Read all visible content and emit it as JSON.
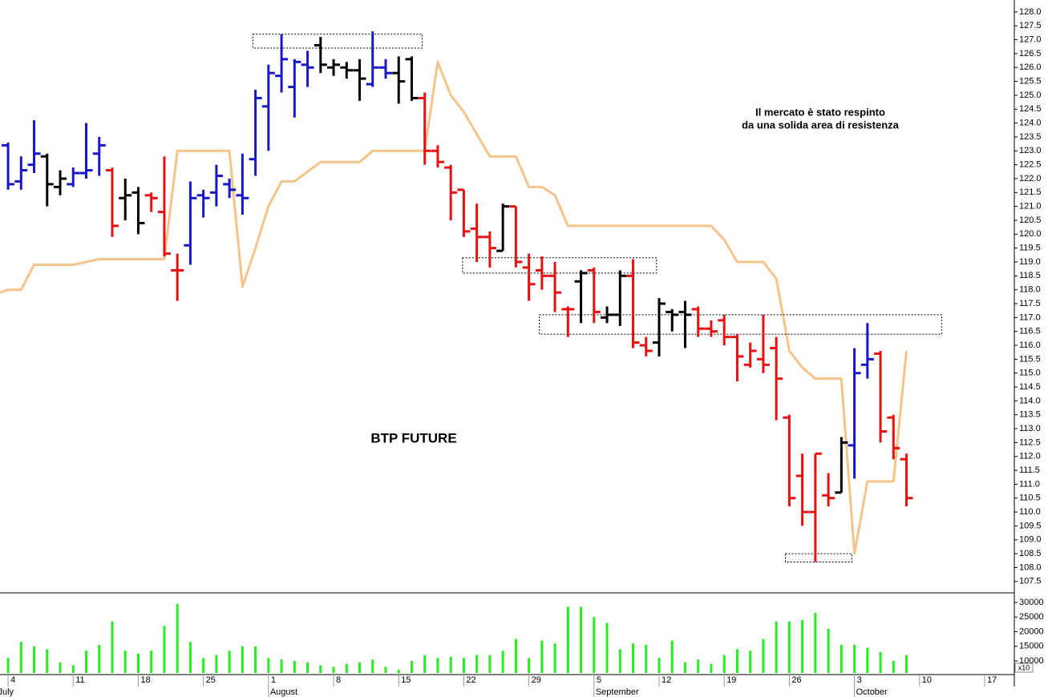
{
  "chart_data": [
    {
      "type": "ohlc",
      "title": "BTP FUTURE",
      "annotation": [
        "Il mercato è stato respinto",
        "da una solida area di resistenza"
      ],
      "x": [
        0,
        1,
        2,
        3,
        4,
        5,
        6,
        7,
        8,
        9,
        10,
        11,
        12,
        13,
        14,
        15,
        16,
        17,
        18,
        19,
        20,
        21,
        22,
        23,
        24,
        25,
        26,
        27,
        28,
        29,
        30,
        31,
        32,
        33,
        34,
        35,
        36,
        37,
        38,
        39,
        40,
        41,
        42,
        43,
        44,
        45,
        46,
        47,
        48,
        49,
        50,
        51,
        52,
        53,
        54,
        55,
        56,
        57,
        58,
        59,
        60,
        61,
        62,
        63,
        64,
        65,
        66,
        67,
        68,
        69
      ],
      "open": [
        123.2,
        121.9,
        122.5,
        122.8,
        121.7,
        121.8,
        122.2,
        122.9,
        122.3,
        121.3,
        121.5,
        121.4,
        120.8,
        118.7,
        119.6,
        121.4,
        121.5,
        121.8,
        121.4,
        122.7,
        124.6,
        125.7,
        125.3,
        126.1,
        126.8,
        126.0,
        126.0,
        125.9,
        125.4,
        126.0,
        125.8,
        126.3,
        124.9,
        123.0,
        122.4,
        121.6,
        120.2,
        119.9,
        119.4,
        121.0,
        118.8,
        118.7,
        118.5,
        117.3,
        118.3,
        118.7,
        117.0,
        117.1,
        118.5,
        116.0,
        116.1,
        117.2,
        117.2,
        117.3,
        116.6,
        116.9,
        116.3,
        115.3,
        115.5,
        115.9,
        113.4,
        111.3,
        110.0,
        110.6,
        110.7,
        112.4,
        115.3,
        115.7,
        113.4,
        111.9
      ],
      "high": [
        123.3,
        122.8,
        124.1,
        122.9,
        122.3,
        122.4,
        124.0,
        123.5,
        122.4,
        122.0,
        121.7,
        121.5,
        122.8,
        119.3,
        121.9,
        121.6,
        122.5,
        122.0,
        122.9,
        125.2,
        126.1,
        127.2,
        126.3,
        126.6,
        127.1,
        126.3,
        126.2,
        126.3,
        127.3,
        126.3,
        126.4,
        126.4,
        125.1,
        123.2,
        122.5,
        121.6,
        121.1,
        120.1,
        121.1,
        121.0,
        119.3,
        119.2,
        119.0,
        117.4,
        118.7,
        118.8,
        117.4,
        118.7,
        119.1,
        116.3,
        117.7,
        117.3,
        117.6,
        117.4,
        116.9,
        117.1,
        116.4,
        116.1,
        117.1,
        116.3,
        113.5,
        112.1,
        112.1,
        111.4,
        112.7,
        115.9,
        116.8,
        115.8,
        113.5,
        112.1
      ],
      "low": [
        121.6,
        121.6,
        122.2,
        121.0,
        121.4,
        121.7,
        122.0,
        122.1,
        119.9,
        120.5,
        120.0,
        120.8,
        119.2,
        117.6,
        118.9,
        120.6,
        121.0,
        121.3,
        120.7,
        122.1,
        123.0,
        125.1,
        124.2,
        125.3,
        125.8,
        125.7,
        125.6,
        124.8,
        125.3,
        125.6,
        124.7,
        124.8,
        122.5,
        122.4,
        120.5,
        119.9,
        119.0,
        118.8,
        119.4,
        118.8,
        117.6,
        118.0,
        117.2,
        116.3,
        116.8,
        116.8,
        116.8,
        116.7,
        115.9,
        115.6,
        115.6,
        116.5,
        115.9,
        116.3,
        116.3,
        116.0,
        114.7,
        115.2,
        115.0,
        113.3,
        110.2,
        109.5,
        108.2,
        110.2,
        110.7,
        111.2,
        114.8,
        112.5,
        111.9,
        110.2
      ],
      "close": [
        121.8,
        122.3,
        122.9,
        121.8,
        122.0,
        122.2,
        122.3,
        123.2,
        120.3,
        121.4,
        120.4,
        121.3,
        119.3,
        118.7,
        121.3,
        121.3,
        122.1,
        121.6,
        121.3,
        124.9,
        125.8,
        126.3,
        126.2,
        126.0,
        126.1,
        126.1,
        125.9,
        125.6,
        126.0,
        125.8,
        125.5,
        124.9,
        123.0,
        122.6,
        121.5,
        120.1,
        119.9,
        119.5,
        121.0,
        119.0,
        118.2,
        118.5,
        117.9,
        117.3,
        118.6,
        117.2,
        117.1,
        118.5,
        116.1,
        115.8,
        117.5,
        117.1,
        117.1,
        116.6,
        116.5,
        116.3,
        115.6,
        115.8,
        115.3,
        114.8,
        110.5,
        110.0,
        112.1,
        110.5,
        112.5,
        115.0,
        115.5,
        112.9,
        112.3,
        110.5
      ],
      "colors": [
        "#1818c8",
        "#1818c8",
        "#1818c8",
        "#000000",
        "#000000",
        "#1818c8",
        "#1818c8",
        "#1818c8",
        "#e81010",
        "#000000",
        "#000000",
        "#e81010",
        "#e81010",
        "#e81010",
        "#1818c8",
        "#1818c8",
        "#1818c8",
        "#1818c8",
        "#1818c8",
        "#1818c8",
        "#1818c8",
        "#1818c8",
        "#1818c8",
        "#1818c8",
        "#000000",
        "#000000",
        "#000000",
        "#000000",
        "#1818c8",
        "#1818c8",
        "#000000",
        "#000000",
        "#e81010",
        "#e81010",
        "#e81010",
        "#e81010",
        "#e81010",
        "#e81010",
        "#000000",
        "#e81010",
        "#e81010",
        "#e81010",
        "#e81010",
        "#e81010",
        "#000000",
        "#e81010",
        "#000000",
        "#000000",
        "#e81010",
        "#e81010",
        "#000000",
        "#000000",
        "#000000",
        "#e81010",
        "#e81010",
        "#e81010",
        "#e81010",
        "#e81010",
        "#e81010",
        "#e81010",
        "#e81010",
        "#e81010",
        "#e81010",
        "#e81010",
        "#000000",
        "#1818c8",
        "#1818c8",
        "#e81010",
        "#e81010",
        "#e81010"
      ],
      "line": {
        "color": "#f5c48a",
        "x": [
          -0.6,
          0,
          1,
          2,
          5,
          7,
          12,
          13,
          17,
          18,
          19,
          20,
          21,
          22,
          24,
          27,
          28,
          32,
          33,
          34,
          35,
          37,
          39,
          40,
          41,
          42,
          43,
          54,
          55,
          56,
          58,
          59,
          60,
          61,
          62,
          64,
          65,
          66,
          68,
          69
        ],
        "values": [
          117.9,
          118.0,
          118.0,
          118.9,
          118.9,
          119.1,
          119.1,
          123.0,
          123.0,
          118.1,
          119.5,
          121.0,
          121.9,
          121.9,
          122.6,
          122.6,
          123.0,
          123.0,
          126.2,
          125.0,
          124.4,
          122.8,
          122.8,
          121.7,
          121.7,
          121.4,
          120.3,
          120.3,
          119.8,
          119.0,
          119.0,
          118.4,
          115.8,
          115.2,
          114.8,
          114.8,
          108.5,
          111.1,
          111.1,
          115.8
        ]
      },
      "zones": [
        {
          "x": [
            18.8,
            31.8
          ],
          "y": [
            126.7,
            127.2
          ]
        },
        {
          "x": [
            34.9,
            49.8
          ],
          "y": [
            118.6,
            119.15
          ]
        },
        {
          "x": [
            40.8,
            71.7
          ],
          "y": [
            116.4,
            117.1
          ]
        },
        {
          "x": [
            59.7,
            64.8
          ],
          "y": [
            108.2,
            108.5
          ]
        }
      ],
      "xlim": [
        -0.62,
        77.28
      ],
      "ylim": [
        107.09,
        128.43
      ],
      "yticks": [
        {
          "value": 107.5,
          "label": "107.5"
        },
        {
          "value": 108,
          "label": "108.0"
        },
        {
          "value": 108.5,
          "label": "108.5"
        },
        {
          "value": 109,
          "label": "109.0"
        },
        {
          "value": 109.5,
          "label": "109.5"
        },
        {
          "value": 110,
          "label": "110.0"
        },
        {
          "value": 110.5,
          "label": "110.5"
        },
        {
          "value": 111,
          "label": "111.0"
        },
        {
          "value": 111.5,
          "label": "111.5"
        },
        {
          "value": 112,
          "label": "112.0"
        },
        {
          "value": 112.5,
          "label": "112.5"
        },
        {
          "value": 113,
          "label": "113.0"
        },
        {
          "value": 113.5,
          "label": "113.5"
        },
        {
          "value": 114,
          "label": "114.0"
        },
        {
          "value": 114.5,
          "label": "114.5"
        },
        {
          "value": 115,
          "label": "115.0"
        },
        {
          "value": 115.5,
          "label": "115.5"
        },
        {
          "value": 116,
          "label": "116.0"
        },
        {
          "value": 116.5,
          "label": "116.5"
        },
        {
          "value": 117,
          "label": "117.0"
        },
        {
          "value": 117.5,
          "label": "117.5"
        },
        {
          "value": 118,
          "label": "118.0"
        },
        {
          "value": 118.5,
          "label": "118.5"
        },
        {
          "value": 119,
          "label": "119.0"
        },
        {
          "value": 119.5,
          "label": "119.5"
        },
        {
          "value": 120,
          "label": "120.0"
        },
        {
          "value": 120.5,
          "label": "120.5"
        },
        {
          "value": 121,
          "label": "121.0"
        },
        {
          "value": 121.5,
          "label": "121.5"
        },
        {
          "value": 122,
          "label": "122.0"
        },
        {
          "value": 122.5,
          "label": "122.5"
        },
        {
          "value": 123,
          "label": "123.0"
        },
        {
          "value": 123.5,
          "label": "123.5"
        },
        {
          "value": 124,
          "label": "124.0"
        },
        {
          "value": 124.5,
          "label": "124.5"
        },
        {
          "value": 125,
          "label": "125.0"
        },
        {
          "value": 125.5,
          "label": "125.5"
        },
        {
          "value": 126,
          "label": "126.0"
        },
        {
          "value": 126.5,
          "label": "126.5"
        },
        {
          "value": 127,
          "label": "127.0"
        },
        {
          "value": 127.5,
          "label": "127.5"
        },
        {
          "value": 128,
          "label": "128.0"
        }
      ],
      "xticks": [
        {
          "value": 0,
          "label": "4"
        },
        {
          "value": 5,
          "label": "11"
        },
        {
          "value": 10,
          "label": "18"
        },
        {
          "value": 15,
          "label": "25"
        },
        {
          "value": 20,
          "label": "1"
        },
        {
          "value": 25,
          "label": "8"
        },
        {
          "value": 30,
          "label": "15"
        },
        {
          "value": 35,
          "label": "22"
        },
        {
          "value": 40,
          "label": "29"
        },
        {
          "value": 45,
          "label": "5"
        },
        {
          "value": 50,
          "label": "12"
        },
        {
          "value": 55,
          "label": "19"
        },
        {
          "value": 60,
          "label": "26"
        },
        {
          "value": 65,
          "label": "3"
        },
        {
          "value": 70,
          "label": "10"
        },
        {
          "value": 75,
          "label": "17"
        }
      ],
      "month_labels": [
        {
          "value": -0.9,
          "label": "July"
        },
        {
          "value": 20,
          "label": "August"
        },
        {
          "value": 45,
          "label": "September"
        },
        {
          "value": 65,
          "label": "October"
        }
      ]
    },
    {
      "type": "bar",
      "x": [
        0,
        1,
        2,
        3,
        4,
        5,
        6,
        7,
        8,
        9,
        10,
        11,
        12,
        13,
        14,
        15,
        16,
        17,
        18,
        19,
        20,
        21,
        22,
        23,
        24,
        25,
        26,
        27,
        28,
        29,
        30,
        31,
        32,
        33,
        34,
        35,
        36,
        37,
        38,
        39,
        40,
        41,
        42,
        43,
        44,
        45,
        46,
        47,
        48,
        49,
        50,
        51,
        52,
        53,
        54,
        55,
        56,
        57,
        58,
        59,
        60,
        61,
        62,
        63,
        64,
        65,
        66,
        67,
        68,
        69
      ],
      "values": [
        11000,
        16500,
        15000,
        14000,
        9500,
        8500,
        13500,
        15500,
        23500,
        13500,
        12500,
        13500,
        22000,
        29500,
        16500,
        11000,
        12000,
        13500,
        15000,
        15000,
        11000,
        10500,
        10000,
        9500,
        8500,
        8000,
        9000,
        9500,
        10500,
        8000,
        7000,
        10000,
        12000,
        11000,
        11500,
        11000,
        12000,
        12000,
        13500,
        17500,
        11000,
        17000,
        16000,
        28500,
        28500,
        25000,
        23000,
        14000,
        16000,
        15500,
        11000,
        17000,
        9500,
        10500,
        9000,
        12000,
        14000,
        13500,
        17500,
        23500,
        23500,
        24000,
        26500,
        21000,
        15500,
        15500,
        14500,
        13000,
        10000,
        12000
      ],
      "color": "#22ee22",
      "ylim": [
        5340,
        33010
      ],
      "yticks": [
        10000,
        15000,
        20000,
        25000,
        30000
      ],
      "multiplier_label": "x10"
    }
  ]
}
